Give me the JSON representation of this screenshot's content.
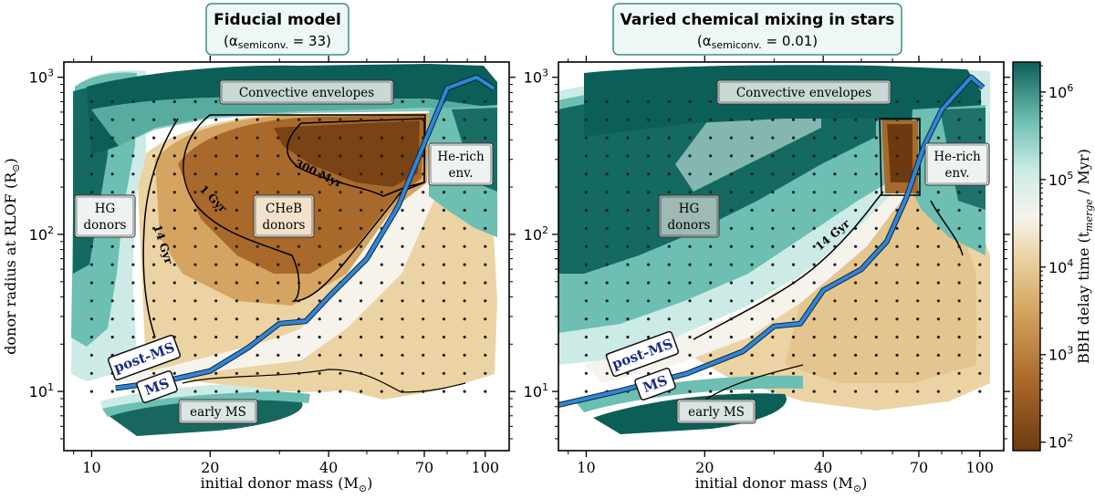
{
  "figure": {
    "ylabel": "donor radius at RLOF (R",
    "ylabel_sub": "⊙",
    "ylabel_end": ")",
    "colorbar_label": "BBH delay time (t",
    "colorbar_label_sub": "merge",
    "colorbar_label_end": " / Myr)",
    "colorbar_ticks": [
      {
        "base": "10",
        "exp": "2",
        "value": 100
      },
      {
        "base": "10",
        "exp": "3",
        "value": 1000
      },
      {
        "base": "10",
        "exp": "4",
        "value": 10000
      },
      {
        "base": "10",
        "exp": "5",
        "value": 100000
      },
      {
        "base": "10",
        "exp": "6",
        "value": 1000000
      }
    ],
    "colors": {
      "dark_teal": "#0b5f56",
      "mid_teal": "#6cbfb2",
      "light_teal": "#cdebe6",
      "white": "#f6f3ec",
      "light_tan": "#ecd3a4",
      "tan": "#d4a460",
      "brown": "#a9692a",
      "dark_brown": "#6d3a10",
      "ms_line": "#2f86d8",
      "ms_label": "#1a2a8a"
    }
  },
  "chart_data": [
    {
      "type": "heatmap",
      "title": "Fiducial model",
      "subtitle_prefix": "(α",
      "subtitle_sub": "semiconv.",
      "subtitle_suffix": " = 33)",
      "xlabel": "initial donor mass (M",
      "xlabel_sub": "⊙",
      "xlabel_end": ")",
      "xscale": "log",
      "yscale": "log",
      "xlim": [
        8.5,
        115
      ],
      "ylim": [
        4.2,
        1250
      ],
      "xticks": [
        10,
        20,
        40,
        70,
        100
      ],
      "xticklabels": [
        "10",
        "20",
        "40",
        "70",
        "100"
      ],
      "yticks": [
        {
          "value": 10,
          "base": "10",
          "exp": "1"
        },
        {
          "value": 100,
          "base": "10",
          "exp": "2"
        },
        {
          "value": 1000,
          "base": "10",
          "exp": "3"
        }
      ],
      "ms_boundary": [
        [
          11.5,
          10.5
        ],
        [
          15,
          11.5
        ],
        [
          20,
          13.5
        ],
        [
          25,
          19
        ],
        [
          30,
          27
        ],
        [
          35,
          28
        ],
        [
          40,
          40
        ],
        [
          50,
          70
        ],
        [
          60,
          150
        ],
        [
          70,
          380
        ],
        [
          80,
          850
        ],
        [
          95,
          1000
        ],
        [
          105,
          850
        ]
      ],
      "contours": [
        {
          "label": "14 Gyr",
          "value_myr": 14000
        },
        {
          "label": "1 Gyr",
          "value_myr": 1000
        },
        {
          "label": "300 Myr",
          "value_myr": 300
        }
      ],
      "region_labels": [
        "Convective envelopes",
        "He-rich",
        "env.",
        "HG",
        "donors",
        "CHeB",
        "donors",
        "early MS"
      ],
      "ms_labels": [
        "post-MS",
        "MS"
      ]
    },
    {
      "type": "heatmap",
      "title": "Varied chemical mixing in stars",
      "subtitle_prefix": "(α",
      "subtitle_sub": "semiconv.",
      "subtitle_suffix": " = 0.01)",
      "xlabel": "initial donor mass (M",
      "xlabel_sub": "⊙",
      "xlabel_end": ")",
      "xscale": "log",
      "yscale": "log",
      "xlim": [
        8.5,
        115
      ],
      "ylim": [
        4.2,
        1250
      ],
      "xticks": [
        10,
        20,
        40,
        70,
        100
      ],
      "xticklabels": [
        "10",
        "20",
        "40",
        "70",
        "100"
      ],
      "yticks": [
        {
          "value": 10,
          "base": "10",
          "exp": "1"
        },
        {
          "value": 100,
          "base": "10",
          "exp": "2"
        },
        {
          "value": 1000,
          "base": "10",
          "exp": "3"
        }
      ],
      "ms_boundary": [
        [
          8.5,
          8.2
        ],
        [
          12,
          10
        ],
        [
          18,
          13
        ],
        [
          25,
          18
        ],
        [
          30,
          26
        ],
        [
          35,
          27
        ],
        [
          40,
          44
        ],
        [
          50,
          60
        ],
        [
          58,
          90
        ],
        [
          65,
          170
        ],
        [
          72,
          360
        ],
        [
          80,
          620
        ],
        [
          95,
          1000
        ],
        [
          102,
          860
        ]
      ],
      "contours": [
        {
          "label": "14 Gyr",
          "value_myr": 14000
        }
      ],
      "region_labels": [
        "Convective envelopes",
        "He-rich",
        "env.",
        "HG",
        "donors",
        "early MS"
      ],
      "ms_labels": [
        "post-MS",
        "MS"
      ]
    }
  ]
}
